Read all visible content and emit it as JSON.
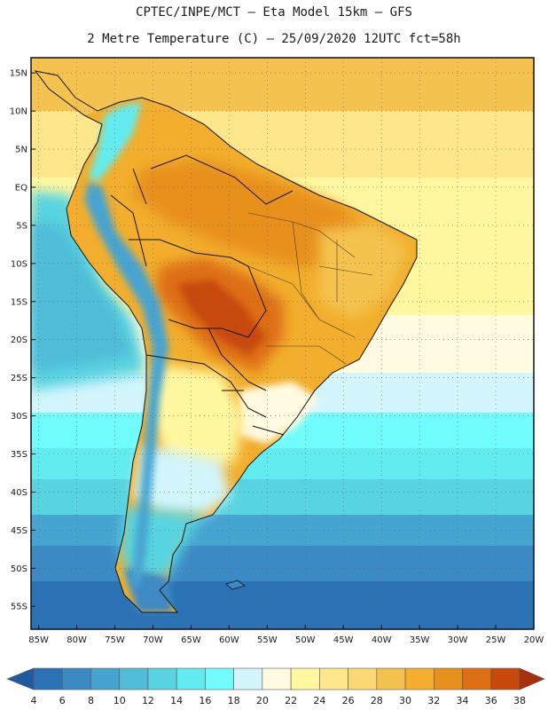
{
  "header": {
    "line1": "CPTEC/INPE/MCT –  Eta Model 15km – GFS",
    "line2": "2 Metre Temperature (C) – 25/09/2020 12UTC fct=58h"
  },
  "map": {
    "lon_range": [
      -86,
      -20
    ],
    "lat_range": [
      -58,
      17
    ],
    "lat_ticks": [
      "15N",
      "10N",
      "5N",
      "EQ",
      "5S",
      "10S",
      "15S",
      "20S",
      "25S",
      "30S",
      "35S",
      "40S",
      "45S",
      "50S",
      "55S"
    ],
    "lat_values": [
      15,
      10,
      5,
      0,
      -5,
      -10,
      -15,
      -20,
      -25,
      -30,
      -35,
      -40,
      -45,
      -50,
      -55
    ],
    "lon_ticks": [
      "85W",
      "80W",
      "75W",
      "70W",
      "65W",
      "60W",
      "55W",
      "50W",
      "45W",
      "40W",
      "35W",
      "30W",
      "25W",
      "20W"
    ],
    "lon_values": [
      -85,
      -80,
      -75,
      -70,
      -65,
      -60,
      -55,
      -50,
      -45,
      -40,
      -35,
      -30,
      -25,
      -20
    ]
  },
  "colorbar": {
    "labels": [
      "4",
      "6",
      "8",
      "10",
      "12",
      "14",
      "16",
      "18",
      "20",
      "22",
      "24",
      "26",
      "28",
      "30",
      "32",
      "34",
      "36",
      "38"
    ],
    "colors": [
      "#1f5aa0",
      "#2b72b4",
      "#3c8ac4",
      "#46a4d0",
      "#50bcd8",
      "#58d4e0",
      "#62ecf0",
      "#70fcfc",
      "#d2f6fc",
      "#fffae0",
      "#fff8a0",
      "#fee68a",
      "#fcd872",
      "#f4c24e",
      "#f2ae2c",
      "#e8901e",
      "#de6e14",
      "#c8480a",
      "#a8300a"
    ]
  }
}
